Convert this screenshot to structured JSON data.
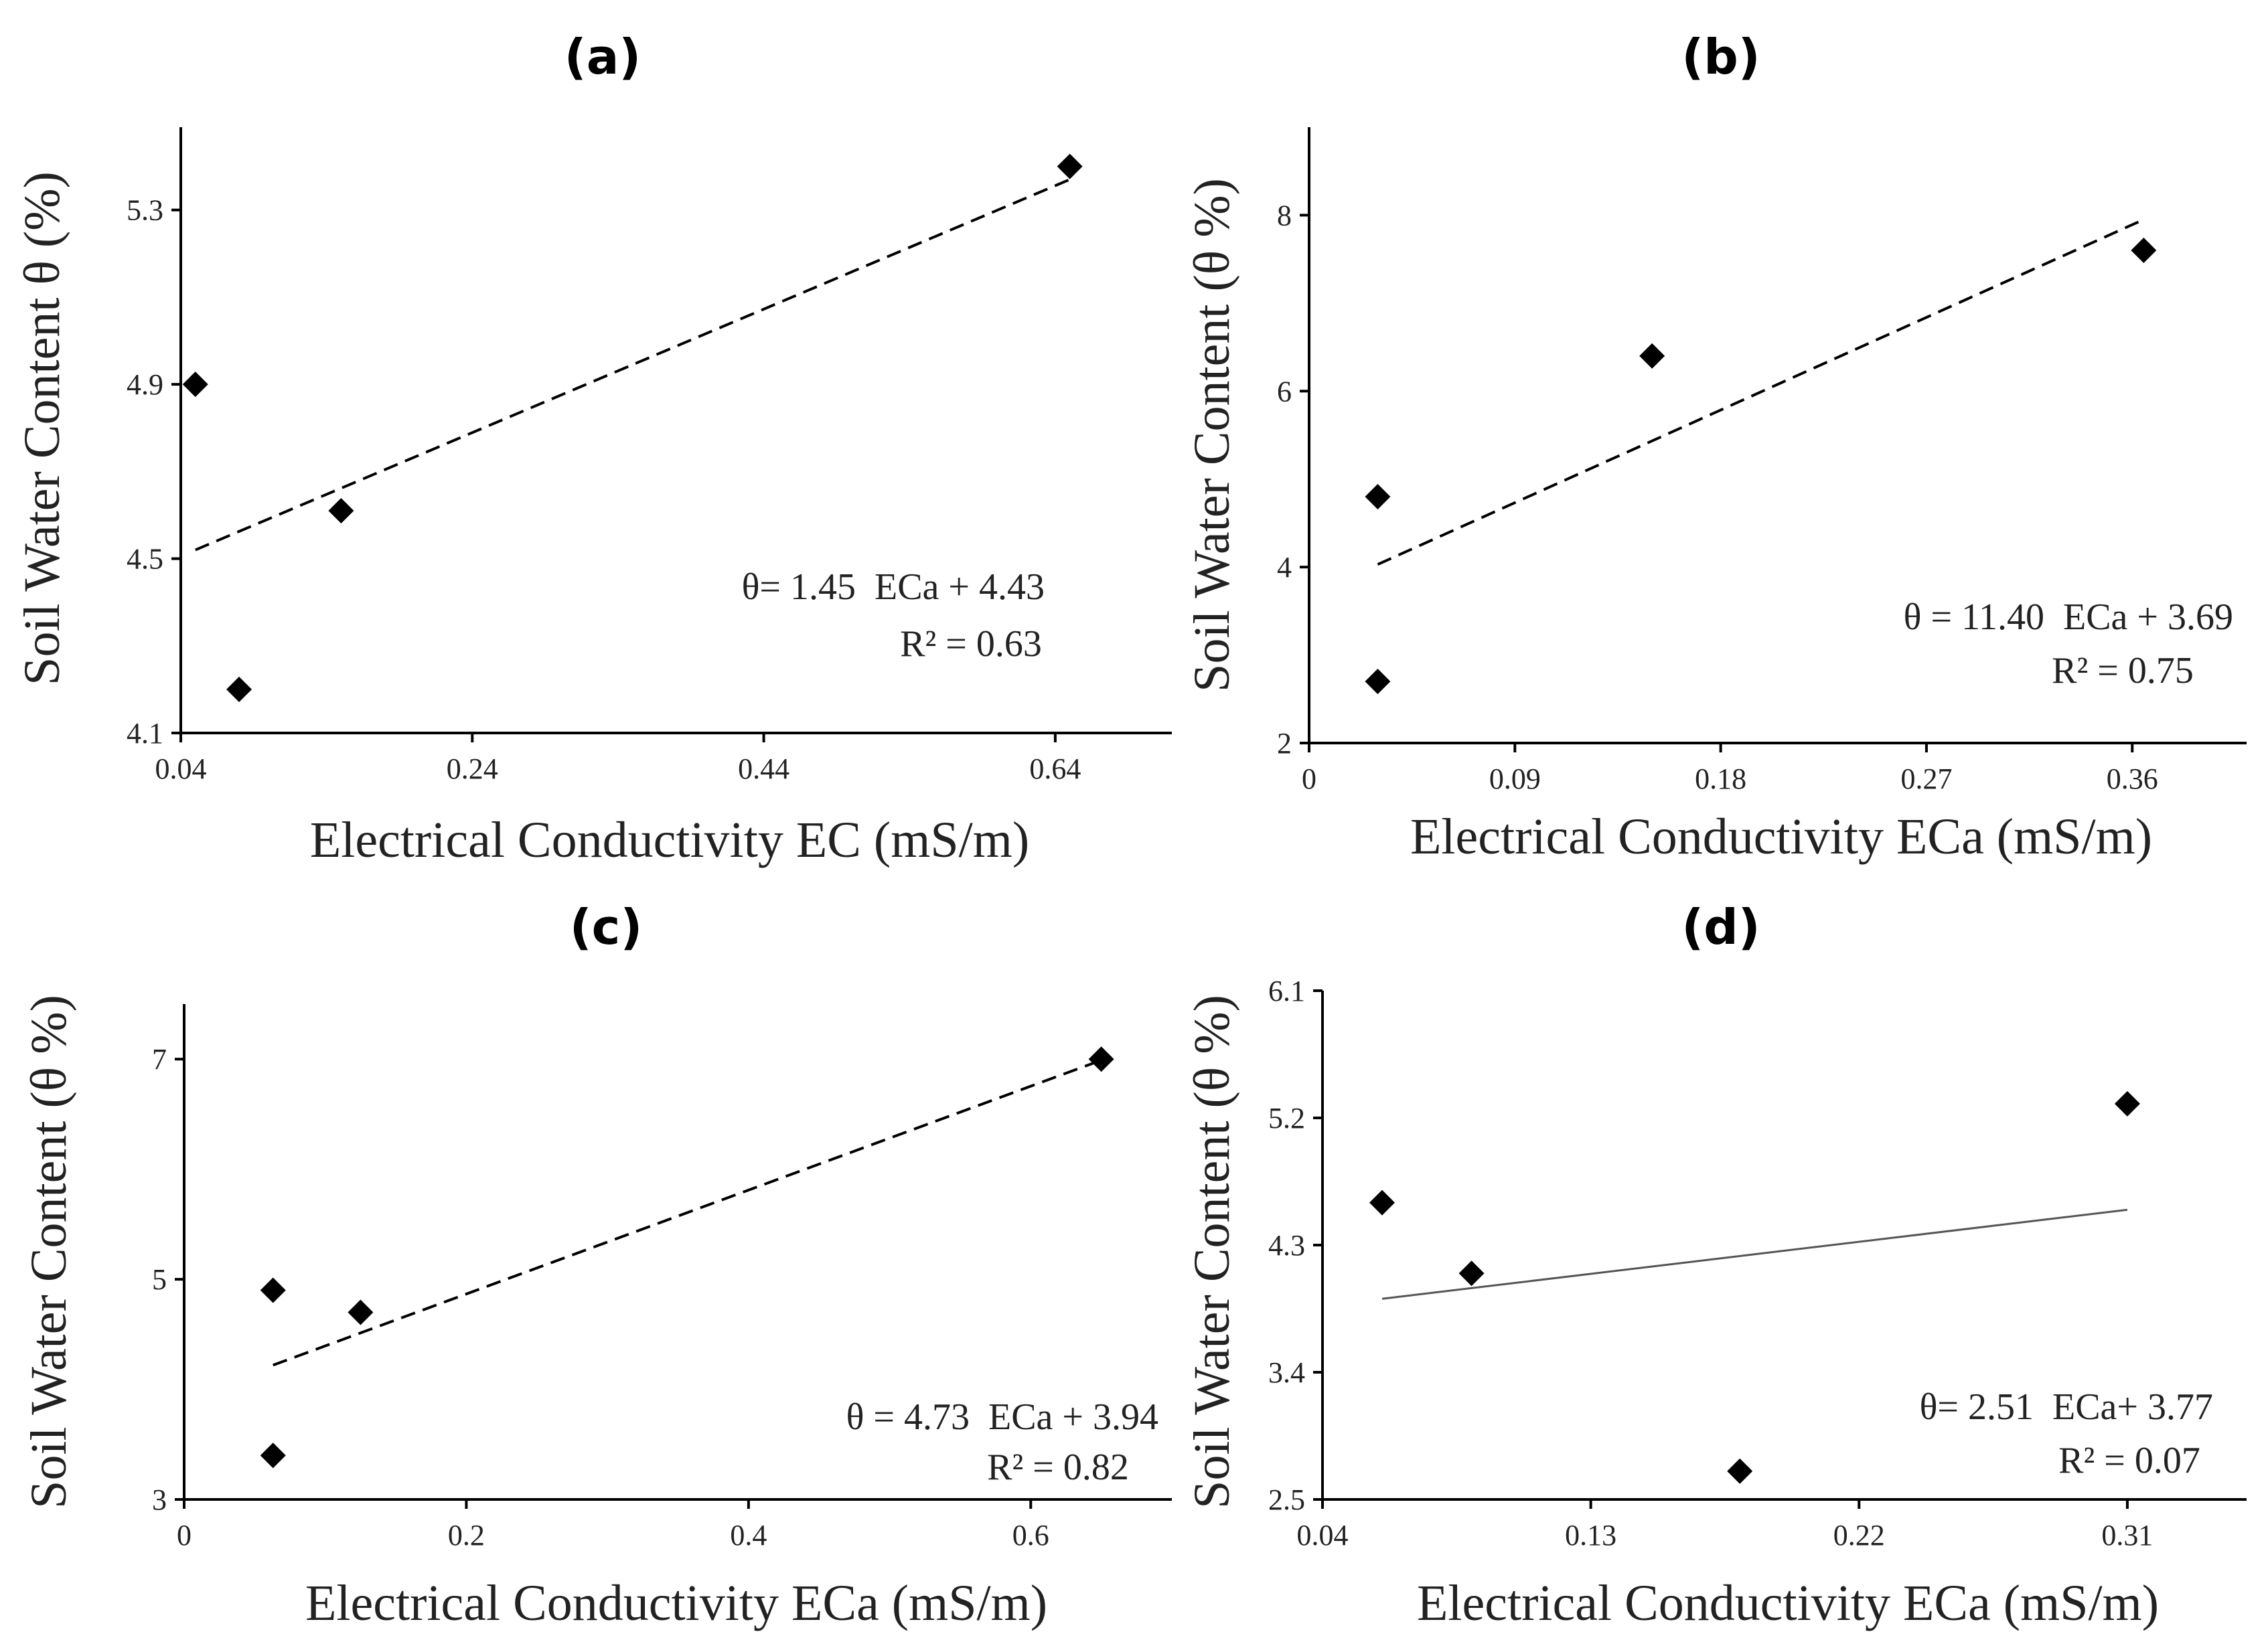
{
  "chart_data": [
    {
      "type": "scatter",
      "panel_label": "(a)",
      "xlabel": "Electrical Conductivity EC (mS/m)",
      "ylabel": "Soil Water Content θ (%)",
      "x_ticks": [
        "0.04",
        "0.24",
        "0.44",
        "0.64"
      ],
      "x_tick_values": [
        0.04,
        0.24,
        0.44,
        0.64
      ],
      "y_ticks": [
        "4.1",
        "4.5",
        "4.9",
        "5.3"
      ],
      "y_tick_values": [
        4.1,
        4.5,
        4.9,
        5.3
      ],
      "xlim": [
        0.04,
        0.72
      ],
      "ylim": [
        4.1,
        5.49
      ],
      "points": [
        {
          "x": 0.05,
          "y": 4.9
        },
        {
          "x": 0.08,
          "y": 4.2
        },
        {
          "x": 0.15,
          "y": 4.61
        },
        {
          "x": 0.65,
          "y": 5.4
        }
      ],
      "trendline": {
        "style": "dashed",
        "x_start": 0.05,
        "x_end": 0.65,
        "y_start": 4.52,
        "y_end": 5.37
      },
      "equation": "θ= 1.45  ECa + 4.43",
      "r_squared": "R² = 0.63"
    },
    {
      "type": "scatter",
      "panel_label": "(b)",
      "xlabel": "Electrical Conductivity ECa (mS/m)",
      "ylabel": "Soil Water Content  (θ %)",
      "x_ticks": [
        "0",
        "0.09",
        "0.18",
        "0.27",
        "0.36"
      ],
      "x_tick_values": [
        0,
        0.09,
        0.18,
        0.27,
        0.36
      ],
      "y_ticks": [
        "2",
        "4",
        "6",
        "8"
      ],
      "y_tick_values": [
        2,
        4,
        6,
        8
      ],
      "xlim": [
        0,
        0.41
      ],
      "ylim": [
        2,
        9.0
      ],
      "points": [
        {
          "x": 0.03,
          "y": 4.8
        },
        {
          "x": 0.03,
          "y": 2.7
        },
        {
          "x": 0.15,
          "y": 6.4
        },
        {
          "x": 0.365,
          "y": 7.6
        }
      ],
      "trendline": {
        "style": "dashed",
        "x_start": 0.03,
        "x_end": 0.365,
        "y_start": 4.03,
        "y_end": 7.95
      },
      "equation": "θ = 11.40  ECa + 3.69",
      "r_squared": "R² = 0.75"
    },
    {
      "type": "scatter",
      "panel_label": "(c)",
      "xlabel": "Electrical Conductivity ECa (mS/m)",
      "ylabel": "Soil Water Content  (θ %)",
      "x_ticks": [
        "0",
        "0.2",
        "0.4",
        "0.6"
      ],
      "x_tick_values": [
        0,
        0.2,
        0.4,
        0.6
      ],
      "y_ticks": [
        "3",
        "5",
        "7"
      ],
      "y_tick_values": [
        3,
        5,
        7
      ],
      "xlim": [
        0,
        0.7
      ],
      "ylim": [
        3,
        7.5
      ],
      "points": [
        {
          "x": 0.063,
          "y": 4.9
        },
        {
          "x": 0.063,
          "y": 3.4
        },
        {
          "x": 0.125,
          "y": 4.7
        },
        {
          "x": 0.65,
          "y": 7.0
        }
      ],
      "trendline": {
        "style": "dashed",
        "x_start": 0.063,
        "x_end": 0.65,
        "y_start": 4.22,
        "y_end": 6.99
      },
      "equation": "θ = 4.73  ECa + 3.94",
      "r_squared": "R² = 0.82"
    },
    {
      "type": "scatter",
      "panel_label": "(d)",
      "xlabel": "Electrical Conductivity ECa (mS/m)",
      "ylabel": "Soil Water Content  (θ %)",
      "x_ticks": [
        "0.04",
        "0.13",
        "0.22",
        "0.31"
      ],
      "x_tick_values": [
        0.04,
        0.13,
        0.22,
        0.31
      ],
      "y_ticks": [
        "2.5",
        "3.4",
        "4.3",
        "5.2",
        "6.1"
      ],
      "y_tick_values": [
        2.5,
        3.4,
        4.3,
        5.2,
        6.1
      ],
      "xlim": [
        0.04,
        0.35
      ],
      "ylim": [
        2.5,
        6.1
      ],
      "points": [
        {
          "x": 0.06,
          "y": 4.6
        },
        {
          "x": 0.09,
          "y": 4.1
        },
        {
          "x": 0.18,
          "y": 2.7
        },
        {
          "x": 0.31,
          "y": 5.3
        }
      ],
      "trendline": {
        "style": "solid",
        "x_start": 0.06,
        "x_end": 0.31,
        "y_start": 3.92,
        "y_end": 4.55
      },
      "equation": "θ= 2.51  ECa+ 3.77",
      "r_squared": "R² = 0.07"
    }
  ]
}
